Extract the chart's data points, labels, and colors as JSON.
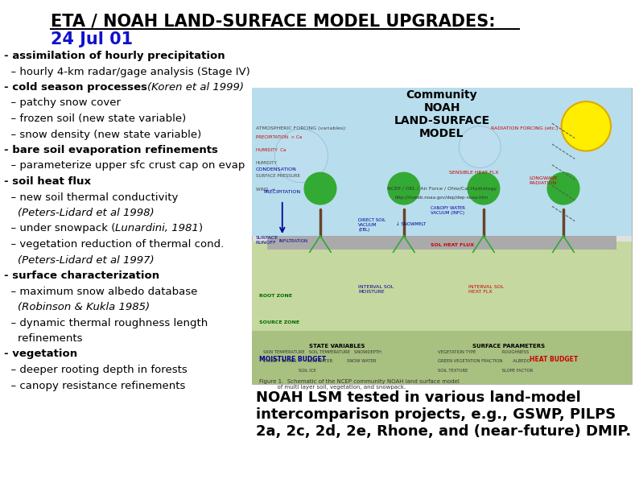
{
  "bg_color": "#ffffff",
  "title_line1": "ETA / NOAH LAND-SURFACE MODEL UPGRADES:",
  "title_line2": "24 Jul 01",
  "title1_color": "#000000",
  "title2_color": "#1111cc",
  "font_size_title": 15,
  "font_size_body": 9.5,
  "font_size_bottom": 13,
  "bottom_text": "NOAH LSM tested in various land-model\nintercomparison projects, e.g., GSWP, PILPS\n2a, 2c, 2d, 2e, Rhone, and (near-future) DMIP.",
  "colors": {
    "blue_label": "#000099",
    "red_label": "#cc0000",
    "green_label": "#006600",
    "tree_green": "#33aa33",
    "sky_blue": "#b8dded",
    "ground_light": "#c5d8a0",
    "ground_dark": "#a8c080",
    "soil_gray": "#aaaaaa",
    "sun_yellow": "#ffee00",
    "sun_border": "#ddaa00",
    "trunk_brown": "#6b4226"
  },
  "lines": [
    {
      "parts": [
        [
          "- assimilation of hourly precipitation",
          true,
          false
        ]
      ]
    },
    {
      "parts": [
        [
          "  – hourly 4-km radar/gage analysis (Stage IV)",
          false,
          false
        ]
      ]
    },
    {
      "parts": [
        [
          "- cold season processes",
          true,
          false
        ],
        [
          "(Koren et al 1999)",
          false,
          true
        ]
      ]
    },
    {
      "parts": [
        [
          "  – patchy snow cover",
          false,
          false
        ]
      ]
    },
    {
      "parts": [
        [
          "  – frozen soil (new state variable)",
          false,
          false
        ]
      ]
    },
    {
      "parts": [
        [
          "  – snow density (new state variable)",
          false,
          false
        ]
      ]
    },
    {
      "parts": [
        [
          "- bare soil evaporation refinements",
          true,
          false
        ]
      ]
    },
    {
      "parts": [
        [
          "  – parameterize upper sfc crust cap on evap",
          false,
          false
        ]
      ]
    },
    {
      "parts": [
        [
          "- soil heat flux",
          true,
          false
        ]
      ]
    },
    {
      "parts": [
        [
          "  – new soil thermal conductivity",
          false,
          false
        ]
      ]
    },
    {
      "parts": [
        [
          "    (Peters-Lidard et al 1998)",
          false,
          true
        ]
      ]
    },
    {
      "parts": [
        [
          "  – under snowpack (",
          false,
          false
        ],
        [
          "Lunardini, 1981",
          false,
          true
        ],
        [
          ")",
          false,
          false
        ]
      ]
    },
    {
      "parts": [
        [
          "  – vegetation reduction of thermal cond.",
          false,
          false
        ]
      ]
    },
    {
      "parts": [
        [
          "    (Peters-Lidard et al 1997)",
          false,
          true
        ]
      ]
    },
    {
      "parts": [
        [
          "- surface characterization",
          true,
          false
        ]
      ]
    },
    {
      "parts": [
        [
          "  – maximum snow albedo database",
          false,
          false
        ]
      ]
    },
    {
      "parts": [
        [
          "    (Robinson & Kukla 1985)",
          false,
          true
        ]
      ]
    },
    {
      "parts": [
        [
          "  – dynamic thermal roughness length",
          false,
          false
        ]
      ]
    },
    {
      "parts": [
        [
          "    refinements",
          false,
          false
        ]
      ]
    },
    {
      "parts": [
        [
          "- vegetation",
          true,
          false
        ]
      ]
    },
    {
      "parts": [
        [
          "  – deeper rooting depth in forests",
          false,
          false
        ]
      ]
    },
    {
      "parts": [
        [
          "  – canopy resistance refinements",
          false,
          false
        ]
      ]
    }
  ]
}
